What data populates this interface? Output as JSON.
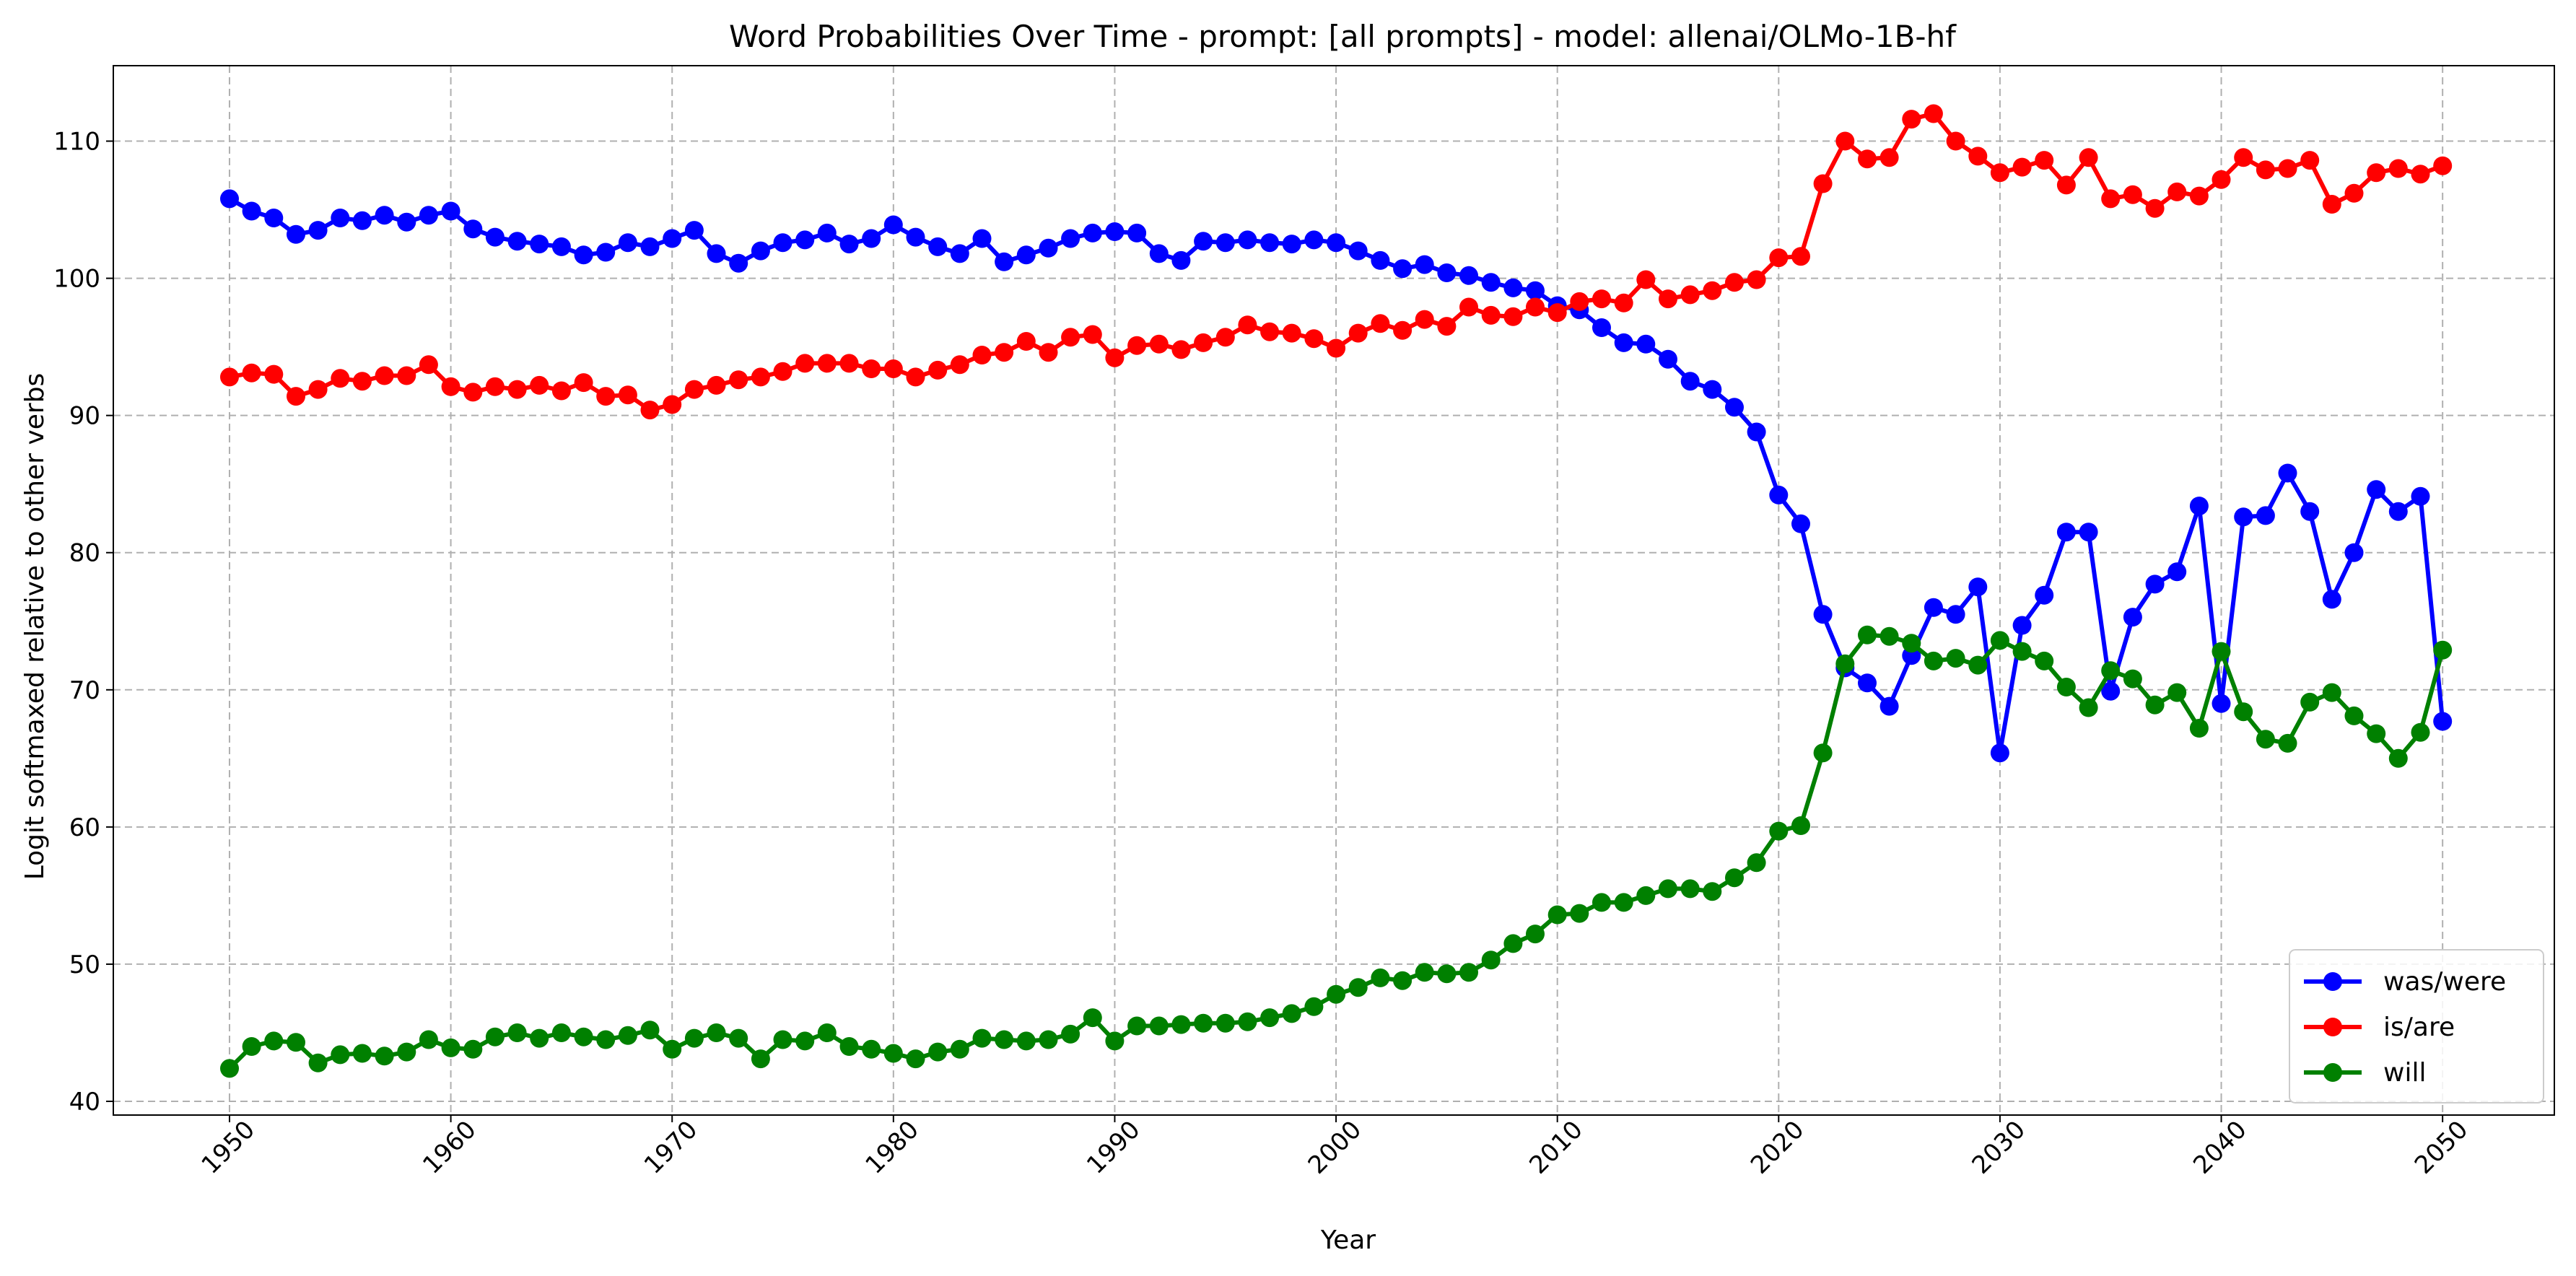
{
  "chart_data": {
    "type": "line",
    "title": "Word Probabilities Over Time - prompt: [all prompts] - model: allenai/OLMo-1B-hf",
    "xlabel": "Year",
    "ylabel": "Logit softmaxed relative to other verbs",
    "xlim": [
      1950,
      2050
    ],
    "ylim": [
      39,
      115.5
    ],
    "xticks": [
      "1950",
      "1960",
      "1970",
      "1980",
      "1990",
      "2000",
      "2010",
      "2020",
      "2030",
      "2040",
      "2050"
    ],
    "yticks": [
      "40",
      "50",
      "60",
      "70",
      "80",
      "90",
      "100",
      "110"
    ],
    "grid": true,
    "legend_position": "lower-right",
    "x": [
      1950,
      1951,
      1952,
      1953,
      1954,
      1955,
      1956,
      1957,
      1958,
      1959,
      1960,
      1961,
      1962,
      1963,
      1964,
      1965,
      1966,
      1967,
      1968,
      1969,
      1970,
      1971,
      1972,
      1973,
      1974,
      1975,
      1976,
      1977,
      1978,
      1979,
      1980,
      1981,
      1982,
      1983,
      1984,
      1985,
      1986,
      1987,
      1988,
      1989,
      1990,
      1991,
      1992,
      1993,
      1994,
      1995,
      1996,
      1997,
      1998,
      1999,
      2000,
      2001,
      2002,
      2003,
      2004,
      2005,
      2006,
      2007,
      2008,
      2009,
      2010,
      2011,
      2012,
      2013,
      2014,
      2015,
      2016,
      2017,
      2018,
      2019,
      2020,
      2021,
      2022,
      2023,
      2024,
      2025,
      2026,
      2027,
      2028,
      2029,
      2030,
      2031,
      2032,
      2033,
      2034,
      2035,
      2036,
      2037,
      2038,
      2039,
      2040,
      2041,
      2042,
      2043,
      2044,
      2045,
      2046,
      2047,
      2048,
      2049,
      2050
    ],
    "series": [
      {
        "name": "was/were",
        "color": "#0000ff",
        "values": [
          105.8,
          104.9,
          104.4,
          103.2,
          103.5,
          104.4,
          104.2,
          104.6,
          104.1,
          104.6,
          104.9,
          103.6,
          103.0,
          102.7,
          102.5,
          102.3,
          101.7,
          101.9,
          102.6,
          102.3,
          102.9,
          103.5,
          101.8,
          101.1,
          102.0,
          102.6,
          102.8,
          103.3,
          102.5,
          102.9,
          103.9,
          103.0,
          102.3,
          101.8,
          102.9,
          101.2,
          101.7,
          102.2,
          102.9,
          103.3,
          103.4,
          103.3,
          101.8,
          101.3,
          102.7,
          102.6,
          102.8,
          102.6,
          102.5,
          102.8,
          102.6,
          102.0,
          101.3,
          100.7,
          101.0,
          100.4,
          100.2,
          99.7,
          99.3,
          99.1,
          98.0,
          97.7,
          96.4,
          95.3,
          95.2,
          94.1,
          92.5,
          91.9,
          90.6,
          88.8,
          84.2,
          82.1,
          75.5,
          71.6,
          70.5,
          68.8,
          72.5,
          76.0,
          75.5,
          77.5,
          65.4,
          74.7,
          76.9,
          81.5,
          81.5,
          69.9,
          75.3,
          77.7,
          78.6,
          83.4,
          69.0,
          82.6,
          82.7,
          85.8,
          83.0,
          76.6,
          80.0,
          84.6,
          83.0,
          84.1,
          67.7
        ]
      },
      {
        "name": "is/are",
        "color": "#ff0000",
        "values": [
          92.8,
          93.1,
          93.0,
          91.4,
          91.9,
          92.7,
          92.5,
          92.9,
          92.9,
          93.7,
          92.1,
          91.7,
          92.1,
          91.9,
          92.2,
          91.8,
          92.4,
          91.4,
          91.5,
          90.4,
          90.8,
          91.9,
          92.2,
          92.6,
          92.8,
          93.2,
          93.8,
          93.8,
          93.8,
          93.4,
          93.4,
          92.8,
          93.3,
          93.7,
          94.4,
          94.6,
          95.4,
          94.6,
          95.7,
          95.9,
          94.2,
          95.1,
          95.2,
          94.8,
          95.3,
          95.7,
          96.6,
          96.1,
          96.0,
          95.6,
          94.9,
          96.0,
          96.7,
          96.2,
          97.0,
          96.5,
          97.9,
          97.3,
          97.2,
          97.9,
          97.5,
          98.3,
          98.5,
          98.2,
          99.9,
          98.5,
          98.8,
          99.1,
          99.7,
          99.9,
          101.5,
          101.6,
          106.9,
          110.0,
          108.7,
          108.8,
          111.6,
          112.0,
          110.0,
          108.9,
          107.7,
          108.1,
          108.6,
          106.8,
          108.8,
          105.8,
          106.1,
          105.1,
          106.3,
          106.0,
          107.2,
          108.8,
          107.9,
          108.0,
          108.6,
          105.4,
          106.2,
          107.7,
          108.0,
          107.6,
          108.2
        ]
      },
      {
        "name": "will",
        "color": "#008000",
        "values": [
          42.4,
          44.0,
          44.4,
          44.3,
          42.8,
          43.4,
          43.5,
          43.3,
          43.6,
          44.5,
          43.9,
          43.8,
          44.7,
          45.0,
          44.6,
          45.0,
          44.7,
          44.5,
          44.8,
          45.2,
          43.8,
          44.6,
          45.0,
          44.6,
          43.1,
          44.5,
          44.4,
          45.0,
          44.0,
          43.8,
          43.5,
          43.1,
          43.6,
          43.8,
          44.6,
          44.5,
          44.4,
          44.5,
          44.9,
          46.1,
          44.4,
          45.5,
          45.5,
          45.6,
          45.7,
          45.7,
          45.8,
          46.1,
          46.4,
          46.9,
          47.8,
          48.3,
          49.0,
          48.8,
          49.4,
          49.3,
          49.4,
          50.3,
          51.5,
          52.2,
          53.6,
          53.7,
          54.5,
          54.5,
          55.0,
          55.5,
          55.5,
          55.3,
          56.3,
          57.4,
          59.7,
          60.1,
          65.4,
          71.9,
          74.0,
          73.9,
          73.4,
          72.1,
          72.3,
          71.8,
          73.6,
          72.8,
          72.1,
          70.2,
          68.7,
          71.4,
          70.8,
          68.9,
          69.8,
          67.2,
          72.8,
          68.4,
          66.4,
          66.1,
          69.1,
          69.8,
          68.1,
          66.8,
          65.0,
          66.9,
          72.9
        ]
      }
    ]
  }
}
